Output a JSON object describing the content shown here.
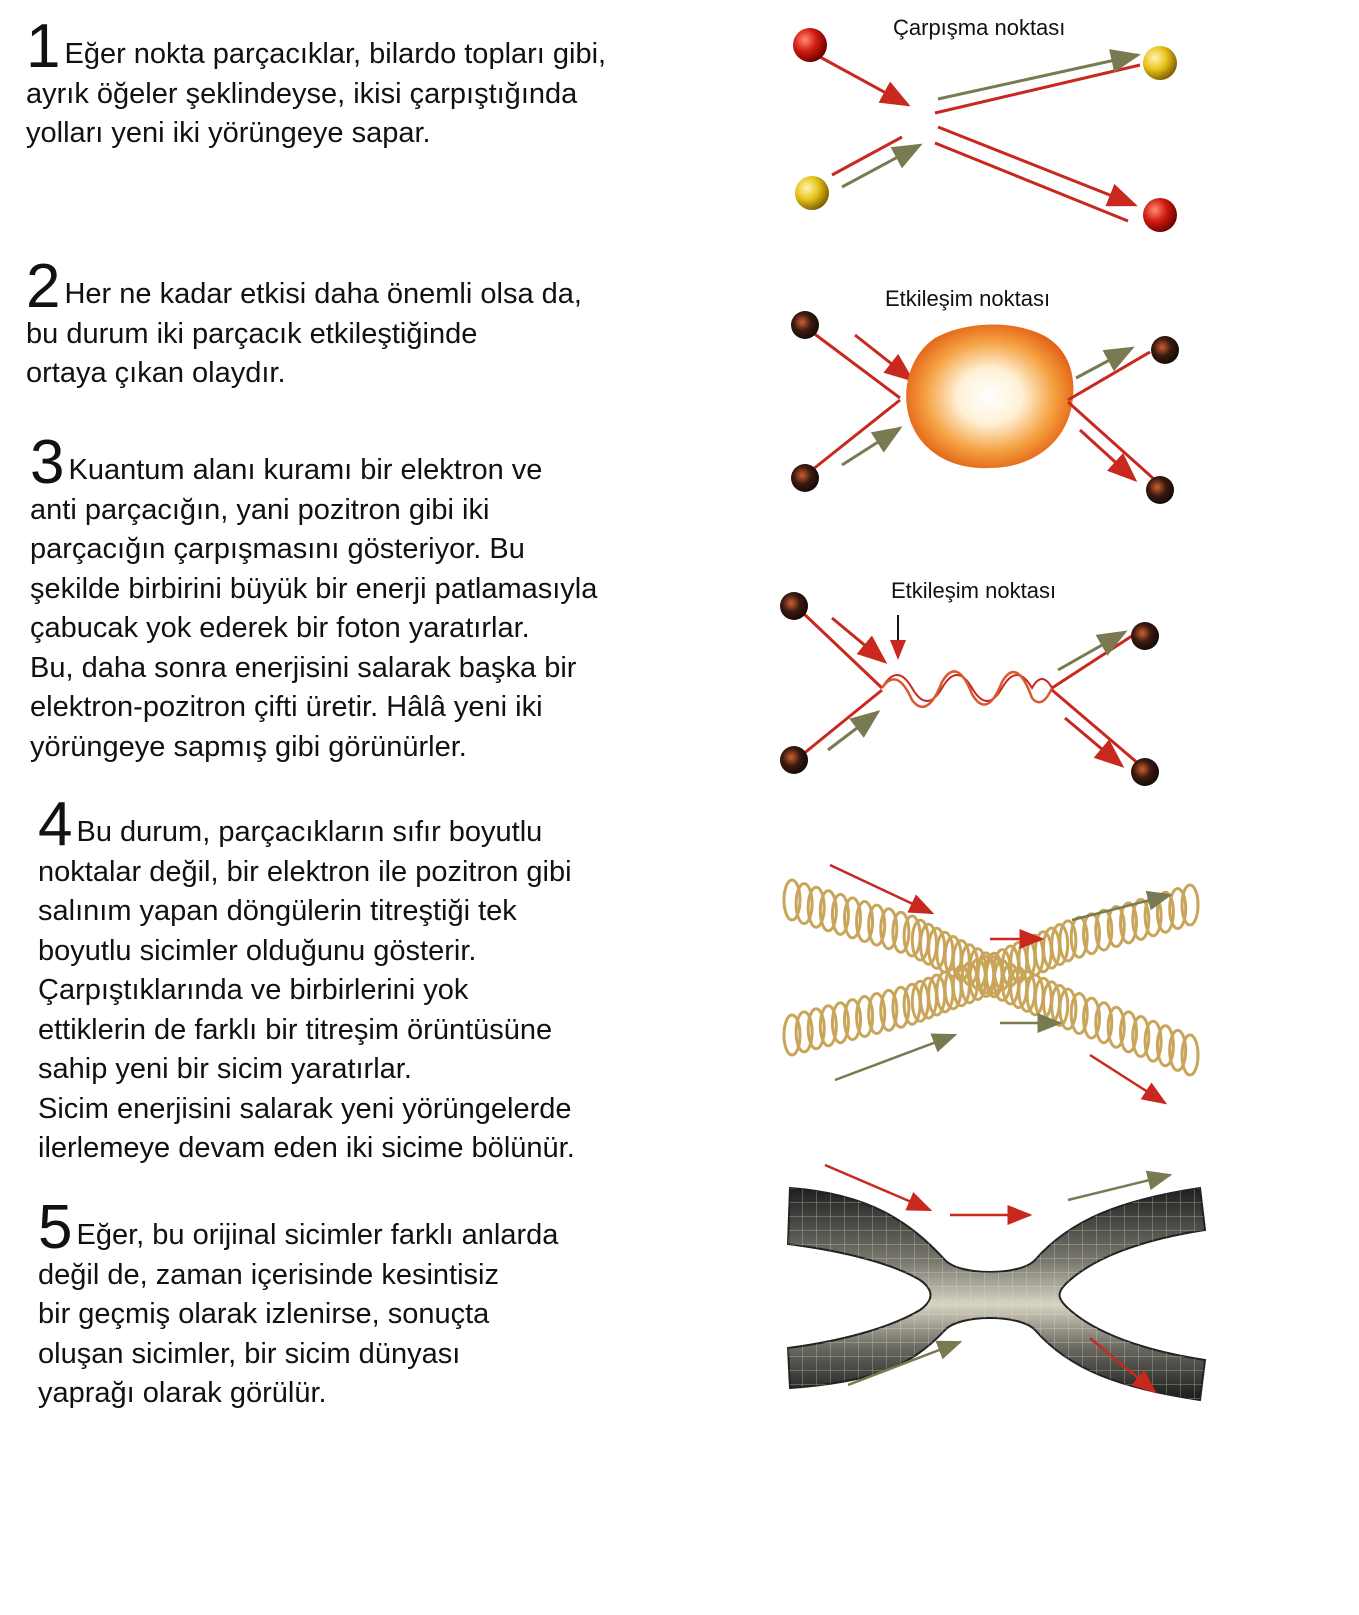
{
  "colors": {
    "arrow_red": "#c8281e",
    "arrow_olive": "#7a7a52",
    "ball_red": "#d01a10",
    "ball_yellow": "#e8c21a",
    "ball_dark": "#3a1a10",
    "spring_gold": "#c9a55a",
    "tube_dark": "#3a3a3a"
  },
  "steps": [
    {
      "number": "1",
      "text": "Eğer nokta parçacıklar, bilardo topları gibi,\nayrık öğeler şeklindeyse, ikisi çarpıştığında\nyolları yeni iki yörüngeye sapar."
    },
    {
      "number": "2",
      "text": "Her ne kadar etkisi daha önemli olsa da,\nbu durum iki parçacık etkileştiğinde\nortaya çıkan olaydır."
    },
    {
      "number": "3",
      "text": "Kuantum alanı kuramı bir elektron ve\nanti parçacığın, yani pozitron gibi iki\nparçacığın çarpışmasını gösteriyor. Bu\nşekilde birbirini büyük bir enerji patlamasıyla\nçabucak yok ederek bir foton yaratırlar.\nBu, daha sonra enerjisini salarak başka bir\nelektron-pozitron çifti üretir. Hâlâ yeni iki\nyörüngeye sapmış gibi görünürler."
    },
    {
      "number": "4",
      "text": "Bu durum, parçacıkların sıfır boyutlu\nnoktalar değil, bir elektron ile pozitron gibi\nsalınım yapan döngülerin titreştiği tek\nboyutlu sicimler olduğunu gösterir.\nÇarpıştıklarında ve birbirlerini yok\nettiklerin de farklı bir titreşim örüntüsüne\nsahip yeni bir sicim yaratırlar.\nSicim enerjisini salarak yeni yörüngelerde\nilerlemeye devam eden iki sicime bölünür."
    },
    {
      "number": "5",
      "text": "Eğer, bu orijinal sicimler farklı anlarda\ndeğil de, zaman içerisinde kesintisiz\nbir geçmiş olarak izlenirse, sonuçta\noluşan sicimler, bir sicim dünyası\nyaprağı olarak görülür."
    }
  ],
  "figures": {
    "fig1_label": "Çarpışma noktası",
    "fig2_label": "Etkileşim noktası",
    "fig3_label": "Etkileşim noktası"
  }
}
